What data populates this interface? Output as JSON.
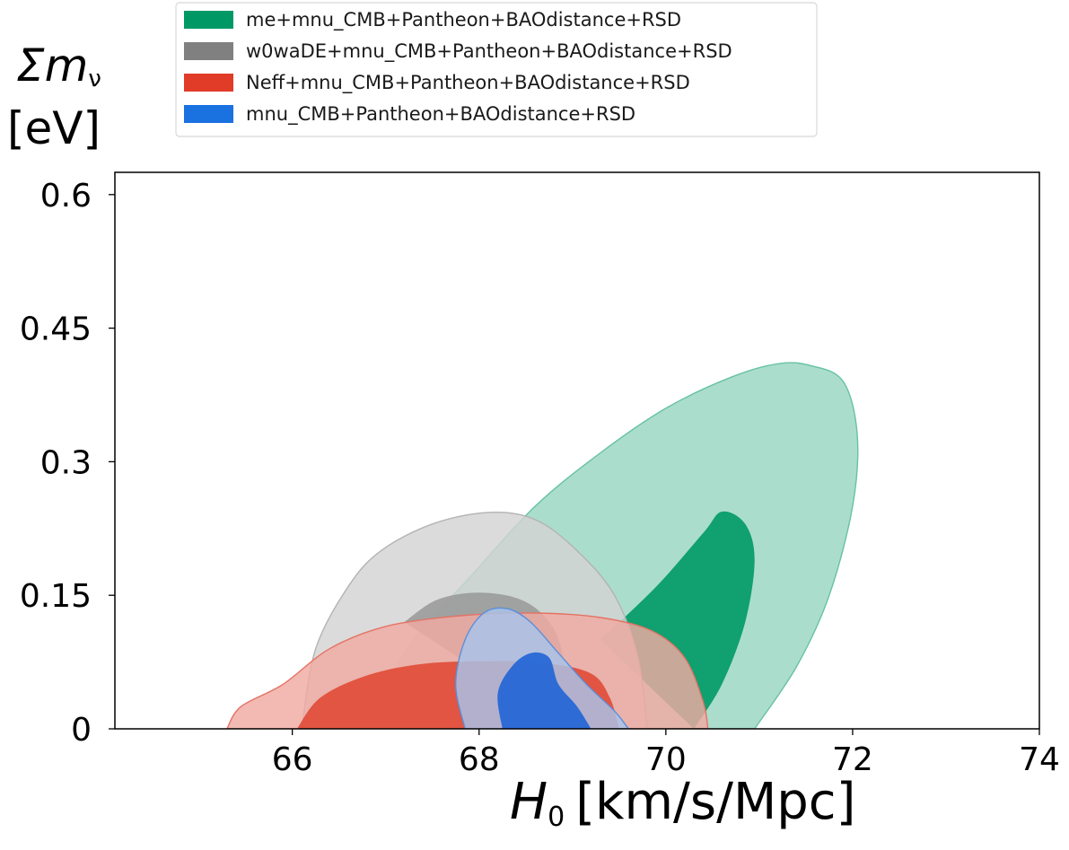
{
  "chart_data": {
    "type": "contour",
    "xlabel_symbol": "H",
    "xlabel_sub": "0",
    "xlabel_unit": "[km/s/Mpc]",
    "ylabel_symbol": "Σm",
    "ylabel_sub": "ν",
    "ylabel_unit": "[eV]",
    "xlim": [
      64.1,
      74.0
    ],
    "ylim": [
      0,
      0.625
    ],
    "xticks": [
      66,
      68,
      70,
      72,
      74
    ],
    "xtick_labels": [
      "66",
      "68",
      "70",
      "72",
      "74"
    ],
    "yticks": [
      0,
      0.15,
      0.3,
      0.45,
      0.6
    ],
    "ytick_labels": [
      "0",
      "0.15",
      "0.3",
      "0.45",
      "0.6"
    ],
    "legend_position": "top",
    "series": [
      {
        "name": "me+mnu_CMB+Pantheon+BAOdistance+RSD",
        "color": "#009966",
        "outer_fill": "#99d6c2",
        "outer_stroke": "#66c2a3",
        "inner_fill": "#009966",
        "outer_contour": [
          [
            66.75,
            0
          ],
          [
            67.3,
            0.1
          ],
          [
            67.9,
            0.17
          ],
          [
            68.6,
            0.25
          ],
          [
            69.3,
            0.31
          ],
          [
            70.0,
            0.36
          ],
          [
            70.7,
            0.395
          ],
          [
            71.2,
            0.41
          ],
          [
            71.55,
            0.408
          ],
          [
            71.9,
            0.39
          ],
          [
            72.05,
            0.33
          ],
          [
            72.0,
            0.25
          ],
          [
            71.75,
            0.15
          ],
          [
            71.4,
            0.07
          ],
          [
            70.95,
            0
          ]
        ],
        "inner_contour": [
          [
            69.3,
            0.1
          ],
          [
            69.9,
            0.16
          ],
          [
            70.4,
            0.22
          ],
          [
            70.6,
            0.244
          ],
          [
            70.85,
            0.23
          ],
          [
            70.95,
            0.19
          ],
          [
            70.85,
            0.12
          ],
          [
            70.6,
            0.05
          ],
          [
            70.3,
            0
          ]
        ]
      },
      {
        "name": "w0waDE+mnu_CMB+Pantheon+BAOdistance+RSD",
        "color": "#808080",
        "outer_fill": "#d3d3d3",
        "outer_stroke": "#b3b3b3",
        "inner_fill": "#9b9b9b",
        "outer_contour": [
          [
            66.1,
            0
          ],
          [
            66.25,
            0.09
          ],
          [
            66.6,
            0.16
          ],
          [
            66.95,
            0.2
          ],
          [
            67.5,
            0.23
          ],
          [
            68.1,
            0.243
          ],
          [
            68.6,
            0.235
          ],
          [
            69.05,
            0.2
          ],
          [
            69.45,
            0.15
          ],
          [
            69.7,
            0.08
          ],
          [
            69.8,
            0
          ]
        ],
        "inner_contour": [
          [
            67.2,
            0.12
          ],
          [
            67.55,
            0.145
          ],
          [
            68.0,
            0.153
          ],
          [
            68.45,
            0.145
          ],
          [
            68.75,
            0.12
          ],
          [
            68.9,
            0.08
          ],
          [
            68.95,
            0
          ]
        ]
      },
      {
        "name": "Neff+mnu_CMB+Pantheon+BAOdistance+RSD",
        "color": "#e03c28",
        "outer_fill": "#f0aaa2",
        "outer_stroke": "#e57264",
        "inner_fill": "#e04a36",
        "outer_contour": [
          [
            65.3,
            0
          ],
          [
            65.45,
            0.025
          ],
          [
            65.9,
            0.05
          ],
          [
            66.4,
            0.09
          ],
          [
            67.0,
            0.115
          ],
          [
            67.8,
            0.127
          ],
          [
            68.6,
            0.13
          ],
          [
            69.3,
            0.125
          ],
          [
            69.85,
            0.11
          ],
          [
            70.2,
            0.08
          ],
          [
            70.4,
            0.03
          ],
          [
            70.45,
            0
          ]
        ],
        "inner_contour": [
          [
            66.05,
            0
          ],
          [
            66.3,
            0.035
          ],
          [
            66.8,
            0.06
          ],
          [
            67.4,
            0.073
          ],
          [
            68.1,
            0.076
          ],
          [
            68.7,
            0.074
          ],
          [
            69.2,
            0.062
          ],
          [
            69.4,
            0.035
          ],
          [
            69.5,
            0
          ]
        ]
      },
      {
        "name": "mnu_CMB+Pantheon+BAOdistance+RSD",
        "color": "#1a72e0",
        "outer_fill": "#a8c4ec",
        "outer_stroke": "#5a8fdb",
        "inner_fill": "#1f64d6",
        "outer_contour": [
          [
            67.85,
            0
          ],
          [
            67.75,
            0.05
          ],
          [
            67.85,
            0.1
          ],
          [
            68.05,
            0.13
          ],
          [
            68.3,
            0.135
          ],
          [
            68.55,
            0.12
          ],
          [
            68.85,
            0.085
          ],
          [
            69.15,
            0.05
          ],
          [
            69.45,
            0.02
          ],
          [
            69.6,
            0
          ]
        ],
        "inner_contour": [
          [
            68.25,
            0
          ],
          [
            68.2,
            0.04
          ],
          [
            68.35,
            0.07
          ],
          [
            68.55,
            0.085
          ],
          [
            68.75,
            0.08
          ],
          [
            68.85,
            0.05
          ],
          [
            69.05,
            0.025
          ],
          [
            69.2,
            0
          ]
        ]
      }
    ]
  }
}
